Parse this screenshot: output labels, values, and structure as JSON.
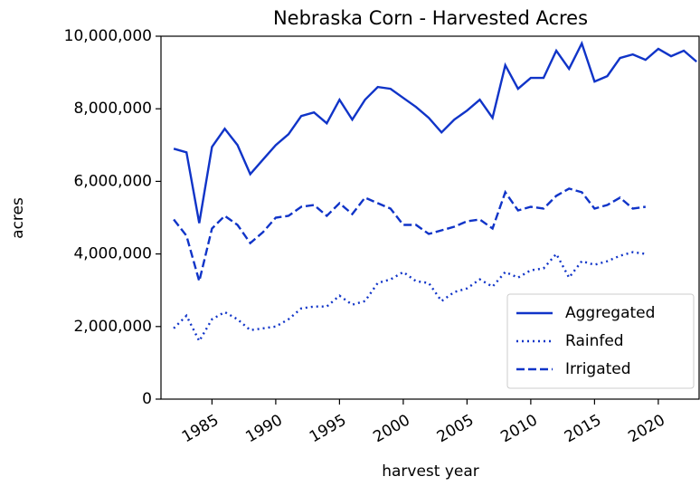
{
  "chart_data": {
    "type": "line",
    "title": "Nebraska Corn - Harvested Acres",
    "x_label": "harvest year",
    "y_label": "acres",
    "x": [
      1982,
      1983,
      1984,
      1985,
      1986,
      1987,
      1988,
      1989,
      1990,
      1991,
      1992,
      1993,
      1994,
      1995,
      1996,
      1997,
      1998,
      1999,
      2000,
      2001,
      2002,
      2003,
      2004,
      2005,
      2006,
      2007,
      2008,
      2009,
      2010,
      2011,
      2012,
      2013,
      2014,
      2015,
      2016,
      2017,
      2018,
      2019,
      2020,
      2021,
      2022,
      2023
    ],
    "series": [
      {
        "name": "Aggregated",
        "color": "#1034c8",
        "linestyle": "solid",
        "values": [
          6900000,
          6800000,
          4850000,
          6950000,
          7450000,
          7000000,
          6200000,
          6600000,
          7000000,
          7300000,
          7800000,
          7900000,
          7600000,
          8250000,
          7700000,
          8250000,
          8600000,
          8550000,
          8300000,
          8050000,
          7750000,
          7350000,
          7700000,
          7950000,
          8250000,
          7750000,
          9200000,
          8550000,
          8850000,
          8850000,
          9600000,
          9100000,
          9800000,
          8750000,
          8900000,
          9400000,
          9500000,
          9350000,
          9650000,
          9450000,
          9600000,
          9300000
        ]
      },
      {
        "name": "Rainfed",
        "color": "#1034c8",
        "linestyle": "dotted",
        "values": [
          1950000,
          2300000,
          1600000,
          2200000,
          2400000,
          2200000,
          1900000,
          1950000,
          2000000,
          2200000,
          2500000,
          2550000,
          2550000,
          2850000,
          2600000,
          2700000,
          3200000,
          3300000,
          3500000,
          3250000,
          3200000,
          2700000,
          2950000,
          3050000,
          3300000,
          3100000,
          3500000,
          3350000,
          3550000,
          3600000,
          4000000,
          3350000,
          3800000,
          3700000,
          3800000,
          3950000,
          4050000,
          4000000,
          null,
          null,
          null,
          null
        ]
      },
      {
        "name": "Irrigated",
        "color": "#1034c8",
        "linestyle": "dashed",
        "values": [
          4950000,
          4500000,
          3250000,
          4700000,
          5050000,
          4800000,
          4300000,
          4600000,
          5000000,
          5050000,
          5300000,
          5350000,
          5050000,
          5400000,
          5100000,
          5550000,
          5400000,
          5250000,
          4800000,
          4800000,
          4550000,
          4650000,
          4750000,
          4900000,
          4950000,
          4700000,
          5700000,
          5200000,
          5300000,
          5250000,
          5600000,
          5800000,
          5700000,
          5250000,
          5350000,
          5550000,
          5250000,
          5300000,
          null,
          null,
          null,
          null
        ]
      }
    ],
    "xlim": [
      1981,
      2023.2
    ],
    "xticks": [
      1985,
      1990,
      1995,
      2000,
      2005,
      2010,
      2015,
      2020
    ],
    "ylim": [
      0,
      10000000
    ],
    "yticks": [
      0,
      {
        "value": 2000000,
        "label": "2,000,000"
      },
      {
        "value": 4000000,
        "label": "4,000,000"
      },
      {
        "value": 6000000,
        "label": "6,000,000"
      },
      {
        "value": 8000000,
        "label": "8,000,000"
      },
      {
        "value": 10000000,
        "label": "10,000,000"
      }
    ],
    "legend": "lower right"
  }
}
